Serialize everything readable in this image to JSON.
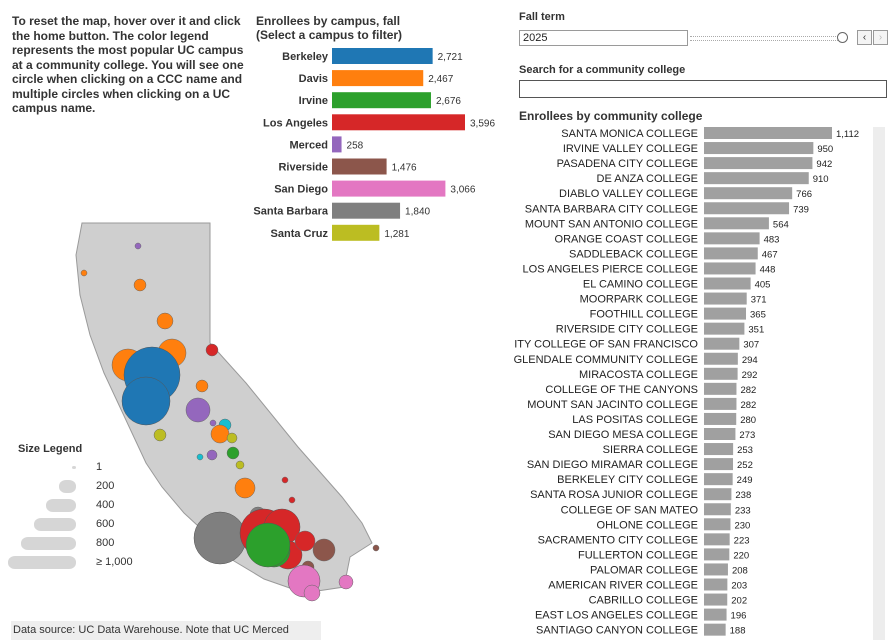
{
  "instructions": "To reset the map, hover over it and click the home button. The color legend represents the most popular UC campus at a community college. You will see one circle when clicking on a CCC name and multiple circles when clicking on a UC campus name.",
  "campus_chart": {
    "title_line1": "Enrollees by campus, fall",
    "title_line2": "(Select a campus to filter)",
    "campuses": [
      {
        "name": "Berkeley",
        "value": 2721,
        "label": "2,721",
        "color": "#1f77b4"
      },
      {
        "name": "Davis",
        "value": 2467,
        "label": "2,467",
        "color": "#ff7f0e"
      },
      {
        "name": "Irvine",
        "value": 2676,
        "label": "2,676",
        "color": "#2ca02c"
      },
      {
        "name": "Los Angeles",
        "value": 3596,
        "label": "3,596",
        "color": "#d62728"
      },
      {
        "name": "Merced",
        "value": 258,
        "label": "258",
        "color": "#9467bd"
      },
      {
        "name": "Riverside",
        "value": 1476,
        "label": "1,476",
        "color": "#8c564b"
      },
      {
        "name": "San Diego",
        "value": 3066,
        "label": "3,066",
        "color": "#e377c2"
      },
      {
        "name": "Santa Barbara",
        "value": 1840,
        "label": "1,840",
        "color": "#7f7f7f"
      },
      {
        "name": "Santa Cruz",
        "value": 1281,
        "label": "1,281",
        "color": "#bcbd22"
      }
    ]
  },
  "filters": {
    "fall_term_label": "Fall term",
    "fall_term_value": "2025",
    "prev_icon": "chevron-left-icon",
    "next_icon": "chevron-right-icon",
    "search_label": "Search for a community college",
    "search_value": ""
  },
  "ccc_chart": {
    "title": "Enrollees by community college",
    "bar_color": "#a0a0a0",
    "colleges": [
      {
        "name": "SANTA MONICA COLLEGE",
        "value": 1112,
        "label": "1,112"
      },
      {
        "name": "IRVINE VALLEY COLLEGE",
        "value": 950,
        "label": "950"
      },
      {
        "name": "PASADENA CITY COLLEGE",
        "value": 942,
        "label": "942"
      },
      {
        "name": "DE ANZA COLLEGE",
        "value": 910,
        "label": "910"
      },
      {
        "name": "DIABLO VALLEY COLLEGE",
        "value": 766,
        "label": "766"
      },
      {
        "name": "SANTA BARBARA CITY COLLEGE",
        "value": 739,
        "label": "739"
      },
      {
        "name": "MOUNT SAN ANTONIO COLLEGE",
        "value": 564,
        "label": "564"
      },
      {
        "name": "ORANGE COAST COLLEGE",
        "value": 483,
        "label": "483"
      },
      {
        "name": "SADDLEBACK COLLEGE",
        "value": 467,
        "label": "467"
      },
      {
        "name": "LOS ANGELES PIERCE COLLEGE",
        "value": 448,
        "label": "448"
      },
      {
        "name": "EL CAMINO COLLEGE",
        "value": 405,
        "label": "405"
      },
      {
        "name": "MOORPARK COLLEGE",
        "value": 371,
        "label": "371"
      },
      {
        "name": "FOOTHILL COLLEGE",
        "value": 365,
        "label": "365"
      },
      {
        "name": "RIVERSIDE CITY COLLEGE",
        "value": 351,
        "label": "351"
      },
      {
        "name": "CITY COLLEGE OF SAN FRANCISCO",
        "value": 307,
        "label": "307"
      },
      {
        "name": "GLENDALE COMMUNITY COLLEGE",
        "value": 294,
        "label": "294"
      },
      {
        "name": "MIRACOSTA COLLEGE",
        "value": 292,
        "label": "292"
      },
      {
        "name": "COLLEGE OF THE CANYONS",
        "value": 282,
        "label": "282"
      },
      {
        "name": "MOUNT SAN JACINTO COLLEGE",
        "value": 282,
        "label": "282"
      },
      {
        "name": "LAS POSITAS COLLEGE",
        "value": 280,
        "label": "280"
      },
      {
        "name": "SAN DIEGO MESA COLLEGE",
        "value": 273,
        "label": "273"
      },
      {
        "name": "SIERRA COLLEGE",
        "value": 253,
        "label": "253"
      },
      {
        "name": "SAN DIEGO MIRAMAR COLLEGE",
        "value": 252,
        "label": "252"
      },
      {
        "name": "BERKELEY CITY COLLEGE",
        "value": 249,
        "label": "249"
      },
      {
        "name": "SANTA ROSA JUNIOR COLLEGE",
        "value": 238,
        "label": "238"
      },
      {
        "name": "COLLEGE OF SAN MATEO",
        "value": 233,
        "label": "233"
      },
      {
        "name": "OHLONE COLLEGE",
        "value": 230,
        "label": "230"
      },
      {
        "name": "SACRAMENTO CITY COLLEGE",
        "value": 223,
        "label": "223"
      },
      {
        "name": "FULLERTON COLLEGE",
        "value": 220,
        "label": "220"
      },
      {
        "name": "PALOMAR COLLEGE",
        "value": 208,
        "label": "208"
      },
      {
        "name": "AMERICAN RIVER COLLEGE",
        "value": 203,
        "label": "203"
      },
      {
        "name": "CABRILLO COLLEGE",
        "value": 202,
        "label": "202"
      },
      {
        "name": "EAST LOS ANGELES COLLEGE",
        "value": 196,
        "label": "196"
      },
      {
        "name": "SANTIAGO CANYON COLLEGE",
        "value": 188,
        "label": "188"
      }
    ]
  },
  "size_legend": {
    "title": "Size Legend",
    "items": [
      {
        "label": "1",
        "value": 1
      },
      {
        "label": "200",
        "value": 200
      },
      {
        "label": "400",
        "value": 400
      },
      {
        "label": "600",
        "value": 600
      },
      {
        "label": "800",
        "value": 800
      },
      {
        "label": "≥ 1,000",
        "value": 1000
      }
    ]
  },
  "footer": {
    "note": "Data source: UC Data Warehouse. Note that UC Merced"
  },
  "chart_data": [
    {
      "type": "bar",
      "title": "Enrollees by campus, fall (Select a campus to filter)",
      "categories": [
        "Berkeley",
        "Davis",
        "Irvine",
        "Los Angeles",
        "Merced",
        "Riverside",
        "San Diego",
        "Santa Barbara",
        "Santa Cruz"
      ],
      "values": [
        2721,
        2467,
        2676,
        3596,
        258,
        1476,
        3066,
        1840,
        1281
      ]
    },
    {
      "type": "bar",
      "title": "Enrollees by community college",
      "categories": [
        "SANTA MONICA COLLEGE",
        "IRVINE VALLEY COLLEGE",
        "PASADENA CITY COLLEGE",
        "DE ANZA COLLEGE",
        "DIABLO VALLEY COLLEGE",
        "SANTA BARBARA CITY COLLEGE",
        "MOUNT SAN ANTONIO COLLEGE",
        "ORANGE COAST COLLEGE",
        "SADDLEBACK COLLEGE",
        "LOS ANGELES PIERCE COLLEGE",
        "EL CAMINO COLLEGE",
        "MOORPARK COLLEGE",
        "FOOTHILL COLLEGE",
        "RIVERSIDE CITY COLLEGE",
        "CITY COLLEGE OF SAN FRANCISCO",
        "GLENDALE COMMUNITY COLLEGE",
        "MIRACOSTA COLLEGE",
        "COLLEGE OF THE CANYONS",
        "MOUNT SAN JACINTO COLLEGE",
        "LAS POSITAS COLLEGE",
        "SAN DIEGO MESA COLLEGE",
        "SIERRA COLLEGE",
        "SAN DIEGO MIRAMAR COLLEGE",
        "BERKELEY CITY COLLEGE",
        "SANTA ROSA JUNIOR COLLEGE",
        "COLLEGE OF SAN MATEO",
        "OHLONE COLLEGE",
        "SACRAMENTO CITY COLLEGE",
        "FULLERTON COLLEGE",
        "PALOMAR COLLEGE",
        "AMERICAN RIVER COLLEGE",
        "CABRILLO COLLEGE",
        "EAST LOS ANGELES COLLEGE",
        "SANTIAGO CANYON COLLEGE"
      ],
      "values": [
        1112,
        950,
        942,
        910,
        766,
        739,
        564,
        483,
        467,
        448,
        405,
        371,
        365,
        351,
        307,
        294,
        292,
        282,
        282,
        280,
        273,
        253,
        252,
        249,
        238,
        233,
        230,
        223,
        220,
        208,
        203,
        202,
        196,
        188
      ]
    }
  ]
}
